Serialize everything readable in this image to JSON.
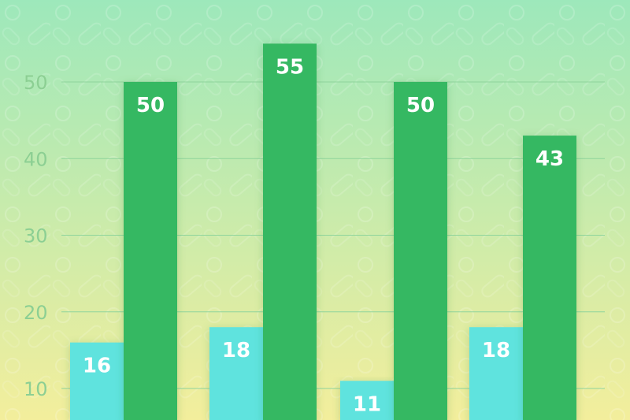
{
  "chart_data": {
    "type": "bar",
    "categories": [
      "",
      "",
      "",
      ""
    ],
    "series": [
      {
        "values": [
          16,
          18,
          11,
          18
        ],
        "color": "#5fe3de"
      },
      {
        "values": [
          50,
          55,
          50,
          43
        ],
        "color": "#35b862"
      }
    ],
    "yticks": [
      10,
      20,
      30,
      40,
      50
    ],
    "ylim": [
      0,
      60
    ],
    "grid": true,
    "title": "",
    "xlabel": "",
    "ylabel": ""
  },
  "colors": {
    "background_top": "#9de8bb",
    "background_bottom": "#f3ee9c",
    "gridline": "#8fd49c",
    "tick_text": "#8ccf93",
    "label_text": "#ffffff"
  }
}
